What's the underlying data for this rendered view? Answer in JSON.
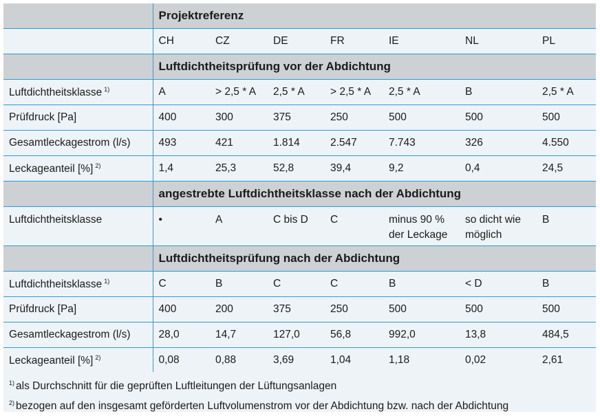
{
  "table": {
    "header": "Projektreferenz",
    "countries": [
      "CH",
      "CZ",
      "DE",
      "FR",
      "IE",
      "NL",
      "PL"
    ],
    "sections": [
      {
        "title": "Luftdichtheitsprüfung vor der Abdichtung",
        "rows": [
          {
            "label": "Luftdichtheitsklasse",
            "note": "1)",
            "cells": [
              "A",
              "> 2,5 * A",
              "2,5 * A",
              "> 2,5 * A",
              "2,5 * A",
              "B",
              "2,5 * A"
            ]
          },
          {
            "label": "Prüfdruck [Pa]",
            "cells": [
              "400",
              "300",
              "375",
              "250",
              "500",
              "500",
              "500"
            ]
          },
          {
            "label": "Gesamtleckagestrom (l/s)",
            "cells": [
              "493",
              "421",
              "1.814",
              "2.547",
              "7.743",
              "326",
              "4.550"
            ]
          },
          {
            "label": "Leckageanteil [%]",
            "note": "2)",
            "cells": [
              "1,4",
              "25,3",
              "52,8",
              "39,4",
              "9,2",
              "0,4",
              "24,5"
            ]
          }
        ]
      },
      {
        "title": "angestrebte Luftdichtheitsklasse nach der Abdichtung",
        "rows": [
          {
            "label": "Luftdichtheitsklasse",
            "cells": [
              [
                "•"
              ],
              [
                "A"
              ],
              [
                "C bis D"
              ],
              [
                "C"
              ],
              [
                "minus 90 %",
                "der Leckage"
              ],
              [
                "so dicht wie",
                "möglich"
              ],
              [
                "B"
              ]
            ]
          }
        ]
      },
      {
        "title": "Luftdichtheitsprüfung nach der Abdichtung",
        "rows": [
          {
            "label": "Luftdichtheitsklasse",
            "note": "1)",
            "cells": [
              "C",
              "B",
              "C",
              "C",
              "B",
              "< D",
              "B"
            ]
          },
          {
            "label": "Prüfdruck [Pa]",
            "cells": [
              "400",
              "200",
              "375",
              "250",
              "500",
              "500",
              "500"
            ]
          },
          {
            "label": "Gesamtleckagestrom (l/s)",
            "cells": [
              "28,0",
              "14,7",
              "127,0",
              "56,8",
              "992,0",
              "13,8",
              "484,5"
            ]
          },
          {
            "label": "Leckageanteil [%]",
            "note": "2)",
            "cells": [
              "0,08",
              "0,88",
              "3,69",
              "1,04",
              "1,18",
              "0,02",
              "2,61"
            ]
          }
        ]
      }
    ]
  },
  "footnotes": [
    {
      "mark": "1)",
      "text": "als Durchschnitt für die geprüften Luftleitungen der Lüftungsanlagen"
    },
    {
      "mark": "2)",
      "text": "bezogen auf den insgesamt geförderten Luftvolumenstrom vor der Abdichtung bzw. nach der Abdichtung"
    }
  ]
}
